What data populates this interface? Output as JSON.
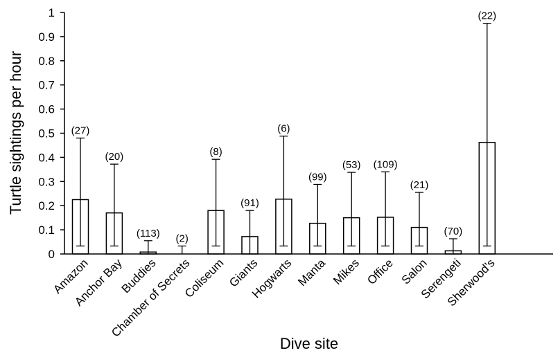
{
  "chart_data": {
    "type": "bar",
    "title": "",
    "xlabel": "Dive site",
    "ylabel": "Turtle sightings per hour",
    "ylim": [
      0,
      1
    ],
    "yticks": [
      "0",
      "0.1",
      "0.2",
      "0.3",
      "0.4",
      "0.5",
      "0.6",
      "0.7",
      "0.8",
      "0.9",
      "1"
    ],
    "grid": false,
    "categories": [
      "Amazon",
      "Anchor Bay",
      "Buddies",
      "Chamber of Secrets",
      "Coliseum",
      "Giants",
      "Hogwarts",
      "Manta",
      "Mikes",
      "Office",
      "Salon",
      "Serengeti",
      "Sherwood's"
    ],
    "values": [
      0.225,
      0.17,
      0.008,
      0.0,
      0.18,
      0.072,
      0.227,
      0.127,
      0.15,
      0.152,
      0.11,
      0.013,
      0.462
    ],
    "error_low": [
      0.033,
      0.033,
      0.0,
      0.0,
      0.033,
      0.0,
      0.033,
      0.033,
      0.033,
      0.033,
      0.033,
      0.0,
      0.033
    ],
    "error_high": [
      0.48,
      0.372,
      0.055,
      0.033,
      0.392,
      0.18,
      0.488,
      0.288,
      0.338,
      0.34,
      0.255,
      0.063,
      0.955
    ],
    "n_labels": [
      "(27)",
      "(20)",
      "(113)",
      "(2)",
      "(8)",
      "(91)",
      "(6)",
      "(99)",
      "(53)",
      "(109)",
      "(21)",
      "(70)",
      "(22)"
    ]
  }
}
